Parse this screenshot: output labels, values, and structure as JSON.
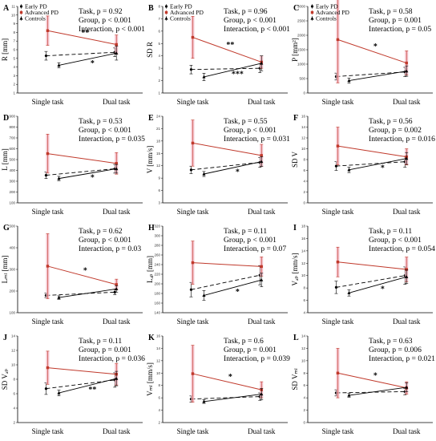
{
  "legend": {
    "entries": [
      {
        "name": "Early PD",
        "color": "#000000",
        "marker": "circle"
      },
      {
        "name": "Advanced PD",
        "color": "#c0392b",
        "marker": "square"
      },
      {
        "name": "Controls",
        "color": "#000000",
        "marker": "triangle"
      }
    ]
  },
  "colors": {
    "advanced": "#c0392b",
    "advanced_band": "#f3b6c3",
    "black": "#000000"
  },
  "chart_data": [
    {
      "type": "line",
      "letter": "A",
      "ylabel": "R [mm]",
      "yticks": [
        "1",
        "2",
        "3",
        "4",
        "5",
        "6",
        "7",
        "8",
        "9",
        "10",
        "11"
      ],
      "ylim": [
        1,
        11
      ],
      "categories": [
        "Single task",
        "Dual task"
      ],
      "stats": [
        "Task, p = 0.92",
        "Group, p < 0.001",
        "Interaction, p < 0.001"
      ],
      "series": [
        {
          "name": "Early PD",
          "values": [
            5.3,
            5.7
          ],
          "err": [
            0.5,
            0.5
          ]
        },
        {
          "name": "Advanced PD",
          "values": [
            8.2,
            6.6
          ],
          "err": [
            1.7,
            1.1
          ]
        },
        {
          "name": "Controls",
          "values": [
            4.2,
            5.6
          ],
          "err": [
            0.3,
            0.8
          ]
        }
      ],
      "annotations": [
        {
          "text": "**",
          "at": "advanced"
        },
        {
          "text": "*",
          "at": "controls"
        }
      ]
    },
    {
      "type": "line",
      "letter": "B",
      "ylabel": "SD R",
      "yticks": [
        "1",
        "2",
        "3",
        "4",
        "5",
        "6",
        "7",
        "8"
      ],
      "ylim": [
        1,
        8
      ],
      "categories": [
        "Single task",
        "Dual task"
      ],
      "stats": [
        "Task, p = 0.96",
        "Group, p < 0.001",
        "Interaction, p < 0.001"
      ],
      "series": [
        {
          "name": "Early PD",
          "values": [
            2.9,
            3.0
          ],
          "err": [
            0.35,
            0.35
          ]
        },
        {
          "name": "Advanced PD",
          "values": [
            5.5,
            3.5
          ],
          "err": [
            1.7,
            0.5
          ]
        },
        {
          "name": "Controls",
          "values": [
            2.3,
            3.4
          ],
          "err": [
            0.3,
            0.6
          ]
        }
      ],
      "annotations": [
        {
          "text": "**",
          "at": "advanced"
        },
        {
          "text": "***",
          "at": "controls"
        }
      ]
    },
    {
      "type": "line",
      "letter": "C",
      "ylabel": "P [mm²]",
      "yticks": [
        "0",
        "500",
        "1000",
        "1500",
        "2000",
        "2500",
        "3000"
      ],
      "ylim": [
        0,
        3000
      ],
      "categories": [
        "Single task",
        "Dual task"
      ],
      "stats": [
        "Task, p = 0.58",
        "Group, p = 0.001",
        "Interaction, p = 0.05"
      ],
      "series": [
        {
          "name": "Early PD",
          "values": [
            570,
            730
          ],
          "err": [
            120,
            160
          ]
        },
        {
          "name": "Advanced PD",
          "values": [
            1850,
            1040
          ],
          "err": [
            1500,
            420
          ]
        },
        {
          "name": "Controls",
          "values": [
            430,
            760
          ],
          "err": [
            90,
            180
          ]
        }
      ],
      "annotations": [
        {
          "text": "*",
          "at": "advanced"
        }
      ]
    },
    {
      "type": "line",
      "letter": "D",
      "ylabel": "L [mm]",
      "yticks": [
        "100",
        "200",
        "300",
        "400",
        "500",
        "600",
        "700",
        "800",
        "900"
      ],
      "ylim": [
        100,
        900
      ],
      "categories": [
        "Single task",
        "Dual task"
      ],
      "stats": [
        "Task, p = 0.53",
        "Group, p < 0.001",
        "Interaction, p = 0.035"
      ],
      "series": [
        {
          "name": "Early PD",
          "values": [
            355,
            415
          ],
          "err": [
            30,
            40
          ]
        },
        {
          "name": "Advanced PD",
          "values": [
            555,
            465
          ],
          "err": [
            180,
            100
          ]
        },
        {
          "name": "Controls",
          "values": [
            325,
            415
          ],
          "err": [
            20,
            40
          ]
        }
      ],
      "annotations": [
        {
          "text": "*",
          "at": "controls"
        }
      ]
    },
    {
      "type": "line",
      "letter": "E",
      "ylabel": "V [mm/s]",
      "yticks": [
        "3",
        "6",
        "9",
        "12",
        "15",
        "18",
        "21",
        "24"
      ],
      "ylim": [
        3,
        24
      ],
      "categories": [
        "Single task",
        "Dual task"
      ],
      "stats": [
        "Task, p = 0.55",
        "Group, p < 0.001",
        "Interaction, p = 0.031"
      ],
      "series": [
        {
          "name": "Early PD",
          "values": [
            11.0,
            12.8
          ],
          "err": [
            0.9,
            1.2
          ]
        },
        {
          "name": "Advanced PD",
          "values": [
            17.5,
            14.5
          ],
          "err": [
            5.6,
            2.7
          ]
        },
        {
          "name": "Controls",
          "values": [
            10.0,
            13.0
          ],
          "err": [
            0.6,
            1.2
          ]
        }
      ],
      "annotations": [
        {
          "text": "*",
          "at": "controls"
        }
      ]
    },
    {
      "type": "line",
      "letter": "F",
      "ylabel": "SD V",
      "yticks": [
        "0",
        "2",
        "4",
        "6",
        "8",
        "10",
        "12",
        "14",
        "16"
      ],
      "ylim": [
        0,
        16
      ],
      "categories": [
        "Single task",
        "Dual task"
      ],
      "stats": [
        "Task, p = 0.56",
        "Group, p = 0.002",
        "Interaction, p = 0.016"
      ],
      "series": [
        {
          "name": "Early PD",
          "values": [
            6.8,
            7.6
          ],
          "err": [
            0.8,
            1.0
          ]
        },
        {
          "name": "Advanced PD",
          "values": [
            10.5,
            8.5
          ],
          "err": [
            3.5,
            1.5
          ]
        },
        {
          "name": "Controls",
          "values": [
            6.1,
            8.2
          ],
          "err": [
            0.5,
            1.1
          ]
        }
      ],
      "annotations": [
        {
          "text": "*",
          "at": "controls"
        }
      ]
    },
    {
      "type": "line",
      "letter": "G",
      "ylabel": "Lₘₗ [mm]",
      "yticks": [
        "100",
        "200",
        "300",
        "400",
        "500"
      ],
      "ylim": [
        100,
        500
      ],
      "categories": [
        "Single task",
        "Dual task"
      ],
      "stats": [
        "Task, p = 0.62",
        "Group, p < 0.001",
        "Interaction, p = 0.03"
      ],
      "series": [
        {
          "name": "Early PD",
          "values": [
            180,
            195
          ],
          "err": [
            10,
            12
          ]
        },
        {
          "name": "Advanced PD",
          "values": [
            315,
            230
          ],
          "err": [
            150,
            25
          ]
        },
        {
          "name": "Controls",
          "values": [
            170,
            210
          ],
          "err": [
            8,
            15
          ]
        }
      ],
      "annotations": [
        {
          "text": "*",
          "at": "advanced"
        }
      ]
    },
    {
      "type": "line",
      "letter": "H",
      "ylabel": "Lₐₚ [mm]",
      "yticks": [
        "140",
        "160",
        "180",
        "200",
        "220",
        "240",
        "260",
        "280",
        "300",
        "320"
      ],
      "ylim": [
        140,
        320
      ],
      "categories": [
        "Single task",
        "Dual task"
      ],
      "stats": [
        "Task, p = 0.11",
        "Group, p < 0.001",
        "Interaction, p = 0.07"
      ],
      "series": [
        {
          "name": "Early PD",
          "values": [
            188,
            218
          ],
          "err": [
            15,
            20
          ]
        },
        {
          "name": "Advanced PD",
          "values": [
            244,
            236
          ],
          "err": [
            45,
            20
          ]
        },
        {
          "name": "Controls",
          "values": [
            176,
            208
          ],
          "err": [
            10,
            14
          ]
        }
      ],
      "annotations": [
        {
          "text": "*",
          "at": "controls"
        }
      ]
    },
    {
      "type": "line",
      "letter": "I",
      "ylabel": "Vₐₚ [mm/s]",
      "yticks": [
        "4",
        "6",
        "8",
        "10",
        "12",
        "14",
        "16",
        "18"
      ],
      "ylim": [
        4,
        18
      ],
      "categories": [
        "Single task",
        "Dual task"
      ],
      "stats": [
        "Task, p = 0.11",
        "Group, p < 0.001",
        "Interaction, p = 0.054"
      ],
      "series": [
        {
          "name": "Early PD",
          "values": [
            8.1,
            10.0
          ],
          "err": [
            1.0,
            1.4
          ]
        },
        {
          "name": "Advanced PD",
          "values": [
            12.2,
            11.0
          ],
          "err": [
            2.4,
            2.0
          ]
        },
        {
          "name": "Controls",
          "values": [
            7.2,
            9.8
          ],
          "err": [
            0.5,
            1.1
          ]
        }
      ],
      "annotations": [
        {
          "text": "*",
          "at": "controls"
        }
      ]
    },
    {
      "type": "line",
      "letter": "J",
      "ylabel": "SD Vₐₚ",
      "yticks": [
        "2",
        "4",
        "6",
        "8",
        "10",
        "12",
        "14"
      ],
      "ylim": [
        2,
        14
      ],
      "categories": [
        "Single task",
        "Dual task"
      ],
      "stats": [
        "Task, p = 0.11",
        "Group, p = 0.001",
        "Interaction, p = 0.036"
      ],
      "series": [
        {
          "name": "Early PD",
          "values": [
            6.7,
            7.9
          ],
          "err": [
            0.8,
            1.0
          ]
        },
        {
          "name": "Advanced PD",
          "values": [
            9.6,
            8.7
          ],
          "err": [
            2.3,
            1.5
          ]
        },
        {
          "name": "Controls",
          "values": [
            6.1,
            8.1
          ],
          "err": [
            0.4,
            1.0
          ]
        }
      ],
      "annotations": [
        {
          "text": "**",
          "at": "controls"
        }
      ]
    },
    {
      "type": "line",
      "letter": "K",
      "ylabel": "Vₘₗ [mm/s]",
      "yticks": [
        "2",
        "4",
        "6",
        "8",
        "10",
        "12",
        "14",
        "16"
      ],
      "ylim": [
        2,
        16
      ],
      "categories": [
        "Single task",
        "Dual task"
      ],
      "stats": [
        "Task, p = 0.6",
        "Group, p = 0.001",
        "Interaction, p = 0.039"
      ],
      "series": [
        {
          "name": "Early PD",
          "values": [
            5.8,
            6.2
          ],
          "err": [
            0.5,
            0.6
          ]
        },
        {
          "name": "Advanced PD",
          "values": [
            9.9,
            7.3
          ],
          "err": [
            4.6,
            1.3
          ]
        },
        {
          "name": "Controls",
          "values": [
            5.4,
            6.6
          ],
          "err": [
            0.3,
            0.9
          ]
        }
      ],
      "annotations": [
        {
          "text": "*",
          "at": "advanced"
        }
      ]
    },
    {
      "type": "line",
      "letter": "L",
      "ylabel": "SD Vₘₗ",
      "yticks": [
        "0",
        "2",
        "4",
        "6",
        "8",
        "10",
        "12",
        "14"
      ],
      "ylim": [
        0,
        14
      ],
      "categories": [
        "Single task",
        "Dual task"
      ],
      "stats": [
        "Task, p = 0.63",
        "Group, p = 0.006",
        "Interaction, p = 0.021"
      ],
      "series": [
        {
          "name": "Early PD",
          "values": [
            4.8,
            5.0
          ],
          "err": [
            0.5,
            0.5
          ]
        },
        {
          "name": "Advanced PD",
          "values": [
            8.0,
            5.6
          ],
          "err": [
            4.0,
            1.0
          ]
        },
        {
          "name": "Controls",
          "values": [
            4.4,
            5.7
          ],
          "err": [
            0.3,
            0.7
          ]
        }
      ],
      "annotations": [
        {
          "text": "*",
          "at": "advanced"
        }
      ]
    }
  ]
}
